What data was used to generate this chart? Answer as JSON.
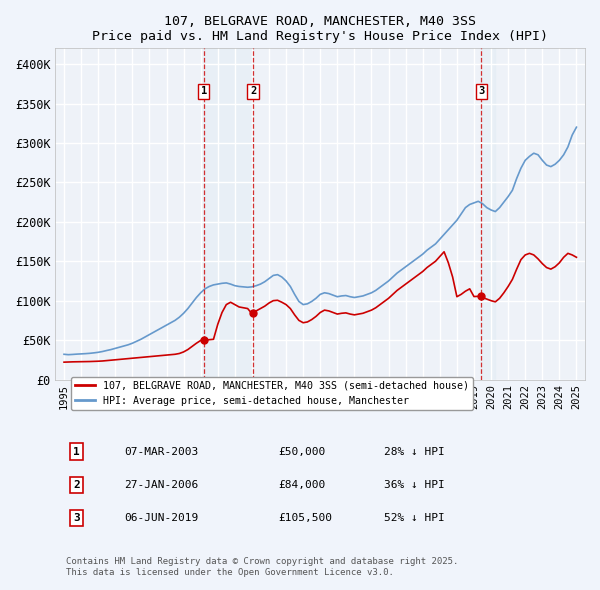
{
  "title": "107, BELGRAVE ROAD, MANCHESTER, M40 3SS",
  "subtitle": "Price paid vs. HM Land Registry's House Price Index (HPI)",
  "ylabel": "",
  "xlabel": "",
  "ylim": [
    0,
    420000
  ],
  "yticks": [
    0,
    50000,
    100000,
    150000,
    200000,
    250000,
    300000,
    350000,
    400000
  ],
  "ytick_labels": [
    "£0",
    "£50K",
    "£100K",
    "£150K",
    "£200K",
    "£250K",
    "£300K",
    "£350K",
    "£400K"
  ],
  "background_color": "#eef2f8",
  "plot_background": "#eef2f8",
  "grid_color": "#ffffff",
  "sale_color": "#cc0000",
  "hpi_color": "#6699cc",
  "sale_label": "107, BELGRAVE ROAD, MANCHESTER, M40 3SS (semi-detached house)",
  "hpi_label": "HPI: Average price, semi-detached house, Manchester",
  "sale_events": [
    {
      "num": 1,
      "date": "07-MAR-2003",
      "price": "£50,000",
      "pct": "28% ↓ HPI",
      "x_year": 2003.18
    },
    {
      "num": 2,
      "date": "27-JAN-2006",
      "price": "£84,000",
      "pct": "36% ↓ HPI",
      "x_year": 2006.07
    },
    {
      "num": 3,
      "date": "06-JUN-2019",
      "price": "£105,500",
      "pct": "52% ↓ HPI",
      "x_year": 2019.43
    }
  ],
  "footer": "Contains HM Land Registry data © Crown copyright and database right 2025.\nThis data is licensed under the Open Government Licence v3.0.",
  "hpi_data": {
    "years": [
      1995.0,
      1995.25,
      1995.5,
      1995.75,
      1996.0,
      1996.25,
      1996.5,
      1996.75,
      1997.0,
      1997.25,
      1997.5,
      1997.75,
      1998.0,
      1998.25,
      1998.5,
      1998.75,
      1999.0,
      1999.25,
      1999.5,
      1999.75,
      2000.0,
      2000.25,
      2000.5,
      2000.75,
      2001.0,
      2001.25,
      2001.5,
      2001.75,
      2002.0,
      2002.25,
      2002.5,
      2002.75,
      2003.0,
      2003.25,
      2003.5,
      2003.75,
      2004.0,
      2004.25,
      2004.5,
      2004.75,
      2005.0,
      2005.25,
      2005.5,
      2005.75,
      2006.0,
      2006.25,
      2006.5,
      2006.75,
      2007.0,
      2007.25,
      2007.5,
      2007.75,
      2008.0,
      2008.25,
      2008.5,
      2008.75,
      2009.0,
      2009.25,
      2009.5,
      2009.75,
      2010.0,
      2010.25,
      2010.5,
      2010.75,
      2011.0,
      2011.25,
      2011.5,
      2011.75,
      2012.0,
      2012.25,
      2012.5,
      2012.75,
      2013.0,
      2013.25,
      2013.5,
      2013.75,
      2014.0,
      2014.25,
      2014.5,
      2014.75,
      2015.0,
      2015.25,
      2015.5,
      2015.75,
      2016.0,
      2016.25,
      2016.5,
      2016.75,
      2017.0,
      2017.25,
      2017.5,
      2017.75,
      2018.0,
      2018.25,
      2018.5,
      2018.75,
      2019.0,
      2019.25,
      2019.5,
      2019.75,
      2020.0,
      2020.25,
      2020.5,
      2020.75,
      2021.0,
      2021.25,
      2021.5,
      2021.75,
      2022.0,
      2022.25,
      2022.5,
      2022.75,
      2023.0,
      2023.25,
      2023.5,
      2023.75,
      2024.0,
      2024.25,
      2024.5,
      2024.75,
      2025.0
    ],
    "values": [
      32000,
      31500,
      31800,
      32200,
      32500,
      32800,
      33200,
      33800,
      34500,
      35500,
      36800,
      38000,
      39500,
      41000,
      42500,
      44000,
      46000,
      48500,
      51000,
      54000,
      57000,
      60000,
      63000,
      66000,
      69000,
      72000,
      75000,
      79000,
      84000,
      90000,
      97000,
      104000,
      110000,
      115000,
      118000,
      120000,
      121000,
      122000,
      122500,
      121000,
      119000,
      118000,
      117500,
      117000,
      117500,
      119000,
      121000,
      124000,
      128000,
      132000,
      133000,
      130000,
      125000,
      118000,
      108000,
      99000,
      95000,
      96000,
      99000,
      103000,
      108000,
      110000,
      109000,
      107000,
      105000,
      106000,
      106500,
      105000,
      104000,
      105000,
      106000,
      108000,
      110000,
      113000,
      117000,
      121000,
      125000,
      130000,
      135000,
      139000,
      143000,
      147000,
      151000,
      155000,
      159000,
      164000,
      168000,
      172000,
      178000,
      184000,
      190000,
      196000,
      202000,
      210000,
      218000,
      222000,
      224000,
      226000,
      223000,
      218000,
      215000,
      213000,
      218000,
      225000,
      232000,
      240000,
      255000,
      268000,
      278000,
      283000,
      287000,
      285000,
      278000,
      272000,
      270000,
      273000,
      278000,
      285000,
      295000,
      310000,
      320000
    ]
  },
  "sale_data": {
    "years": [
      1995.0,
      1995.25,
      1995.5,
      1995.75,
      1996.0,
      1996.25,
      1996.5,
      1996.75,
      1997.0,
      1997.25,
      1997.5,
      1997.75,
      1998.0,
      1998.25,
      1998.5,
      1998.75,
      1999.0,
      1999.25,
      1999.5,
      1999.75,
      2000.0,
      2000.25,
      2000.5,
      2000.75,
      2001.0,
      2001.25,
      2001.5,
      2001.75,
      2002.0,
      2002.25,
      2002.5,
      2002.75,
      2003.0,
      2003.25,
      2003.5,
      2003.75,
      2004.0,
      2004.25,
      2004.5,
      2004.75,
      2005.0,
      2005.25,
      2005.5,
      2005.75,
      2006.0,
      2006.25,
      2006.5,
      2006.75,
      2007.0,
      2007.25,
      2007.5,
      2007.75,
      2008.0,
      2008.25,
      2008.5,
      2008.75,
      2009.0,
      2009.25,
      2009.5,
      2009.75,
      2010.0,
      2010.25,
      2010.5,
      2010.75,
      2011.0,
      2011.25,
      2011.5,
      2011.75,
      2012.0,
      2012.25,
      2012.5,
      2012.75,
      2013.0,
      2013.25,
      2013.5,
      2013.75,
      2014.0,
      2014.25,
      2014.5,
      2014.75,
      2015.0,
      2015.25,
      2015.5,
      2015.75,
      2016.0,
      2016.25,
      2016.5,
      2016.75,
      2017.0,
      2017.25,
      2017.5,
      2017.75,
      2018.0,
      2018.25,
      2018.5,
      2018.75,
      2019.0,
      2019.25,
      2019.5,
      2019.75,
      2020.0,
      2020.25,
      2020.5,
      2020.75,
      2021.0,
      2021.25,
      2021.5,
      2021.75,
      2022.0,
      2022.25,
      2022.5,
      2022.75,
      2023.0,
      2023.25,
      2023.5,
      2023.75,
      2024.0,
      2024.25,
      2024.5,
      2024.75,
      2025.0
    ],
    "values": [
      22000,
      22200,
      22400,
      22500,
      22600,
      22700,
      22800,
      23000,
      23200,
      23500,
      24000,
      24500,
      25000,
      25500,
      26000,
      26500,
      27000,
      27500,
      28000,
      28500,
      29000,
      29500,
      30000,
      30500,
      31000,
      31500,
      32000,
      33000,
      35000,
      38000,
      42000,
      46000,
      49500,
      50000,
      50500,
      51000,
      70000,
      85000,
      95000,
      98000,
      95000,
      92000,
      91000,
      90000,
      83500,
      87000,
      90000,
      93000,
      97000,
      100000,
      100500,
      98000,
      95000,
      90000,
      82000,
      75000,
      72000,
      73000,
      76000,
      80000,
      85000,
      88000,
      87000,
      85000,
      83000,
      84000,
      84500,
      83000,
      82000,
      83000,
      84000,
      86000,
      88000,
      91000,
      95000,
      99000,
      103000,
      108000,
      113000,
      117000,
      121000,
      125000,
      129000,
      133000,
      137000,
      142000,
      146000,
      150000,
      156000,
      162000,
      148000,
      130000,
      105000,
      108000,
      112000,
      115000,
      105200,
      105500,
      104000,
      102000,
      100000,
      98500,
      103000,
      110000,
      118000,
      127000,
      140000,
      152000,
      158000,
      160000,
      158000,
      153000,
      147000,
      142000,
      140000,
      143000,
      148000,
      155000,
      160000,
      158000,
      155000
    ]
  },
  "xlim": [
    1994.5,
    2025.5
  ],
  "xticks": [
    1995,
    1996,
    1997,
    1998,
    1999,
    2000,
    2001,
    2002,
    2003,
    2004,
    2005,
    2006,
    2007,
    2008,
    2009,
    2010,
    2011,
    2012,
    2013,
    2014,
    2015,
    2016,
    2017,
    2018,
    2019,
    2020,
    2021,
    2022,
    2023,
    2024,
    2025
  ]
}
